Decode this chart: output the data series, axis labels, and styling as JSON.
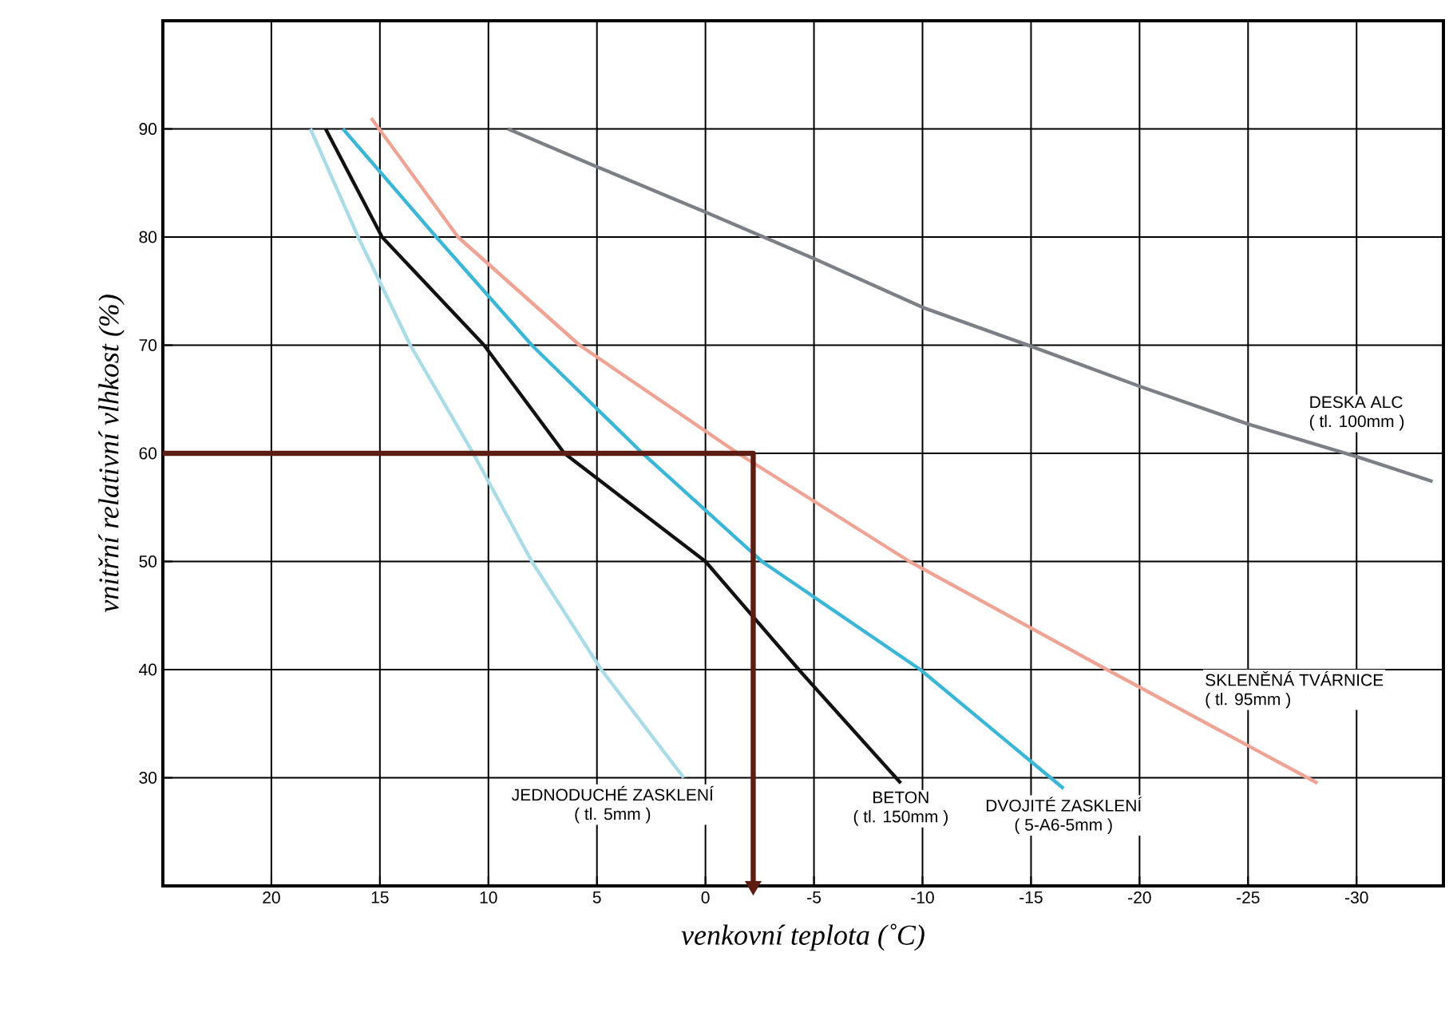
{
  "chart_data": {
    "type": "line",
    "xlabel": "venkovní teplota (˚C)",
    "ylabel": "vnitřní relativní vlhkost (%)",
    "xlim": [
      25,
      -34
    ],
    "ylim": [
      20,
      100
    ],
    "xticks": [
      20,
      15,
      10,
      5,
      0,
      -5,
      -10,
      -15,
      -20,
      -25,
      -30
    ],
    "yticks": [
      30,
      40,
      50,
      60,
      70,
      80,
      90
    ],
    "grid": true,
    "marker": "none",
    "line_style": "solid",
    "series": [
      {
        "name": "JEDNODUCHÉ ZASKLENÍ",
        "color": "#a9dce6",
        "x": [
          18.2,
          16,
          13.6,
          10.7,
          8,
          4.8,
          1
        ],
        "values": [
          90,
          80,
          70,
          60,
          50,
          40,
          30
        ]
      },
      {
        "name": "BETON",
        "color": "#111111",
        "x": [
          17.5,
          14.9,
          10.2,
          6.5,
          0,
          -4.3,
          -9
        ],
        "values": [
          90,
          80,
          70,
          60,
          50,
          40,
          29.5
        ]
      },
      {
        "name": "DVOJITÉ ZASKLENÍ",
        "color": "#3cb6d6",
        "x": [
          16.7,
          12.4,
          8,
          2.9,
          -2.6,
          -9.9,
          -16.5
        ],
        "values": [
          90,
          80,
          70,
          60,
          50,
          40,
          29
        ]
      },
      {
        "name": "SKLENĚNÁ TVÁRNICE",
        "color": "#eea394",
        "x": [
          15.4,
          11.4,
          5.8,
          -1.5,
          -9.4,
          -18.5,
          -28.2
        ],
        "values": [
          91,
          80,
          70,
          60,
          50,
          40,
          29.5
        ]
      },
      {
        "name": "DESKA ALC",
        "color": "#7b8086",
        "x": [
          9.1,
          5,
          0,
          -5,
          -10,
          -15,
          -20,
          -25,
          -30,
          -33.5
        ],
        "values": [
          90,
          86.5,
          82.3,
          78,
          73.5,
          69.9,
          66.2,
          62.7,
          59.7,
          57.4
        ]
      },
      {
        "color": "#5c1c12",
        "x": [
          25,
          -2.2,
          -2.2
        ],
        "values": [
          60,
          60,
          20
        ]
      }
    ],
    "annotations": [
      {
        "text": "( tl. 5mm )",
        "x": 1,
        "y": 30
      },
      {
        "text": "( tl. 150mm )",
        "x": -9,
        "y": 29.5
      },
      {
        "text": "( 5-A6-5mm )",
        "x": -16.5,
        "y": 29
      },
      {
        "text": "( tl. 95mm )",
        "x": -22.7,
        "y": 35.5
      },
      {
        "text": "( tl. 100mm )",
        "x": -27.5,
        "y": 61.2
      }
    ]
  }
}
